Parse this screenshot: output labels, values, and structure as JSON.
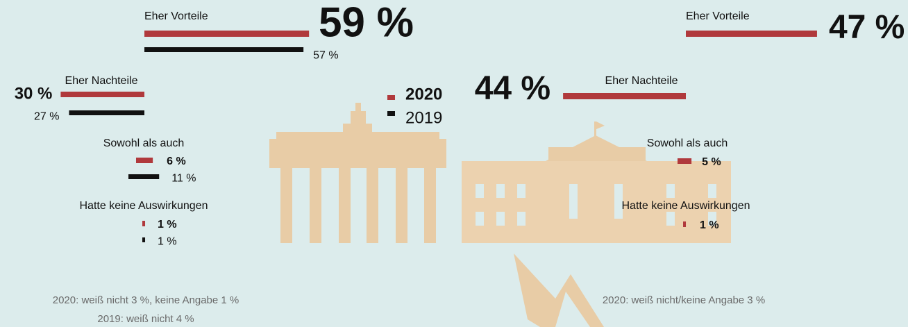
{
  "chart_data": [
    {
      "type": "bar",
      "categories": [
        "Eher Vorteile",
        "Eher Nachteile",
        "Sowohl als auch",
        "Hatte keine Auswirkungen"
      ],
      "series": [
        {
          "name": "2020",
          "color": "#b0393c",
          "values": [
            59,
            30,
            6,
            1
          ],
          "value_labels": [
            "59 %",
            "30 %",
            "6 %",
            "1 %"
          ]
        },
        {
          "name": "2019",
          "color": "#111111",
          "values": [
            57,
            27,
            11,
            1
          ],
          "value_labels": [
            "57 %",
            "27 %",
            "11 %",
            "1 %"
          ]
        }
      ],
      "annotations": [
        "2020: weiß nicht 3 %, keine Angabe 1 %",
        "2019: weiß nicht 4 %"
      ]
    },
    {
      "type": "bar",
      "categories": [
        "Eher Vorteile",
        "Eher Nachteile",
        "Sowohl als auch",
        "Hatte keine Auswirkungen"
      ],
      "series": [
        {
          "color": "#b0393c",
          "values": [
            47,
            44,
            5,
            1
          ],
          "value_labels": [
            "47 %",
            "44 %",
            "5 %",
            "1 %"
          ]
        }
      ],
      "annotations": [
        "2020: weiß nicht/keine Angabe 3 %"
      ]
    }
  ]
}
